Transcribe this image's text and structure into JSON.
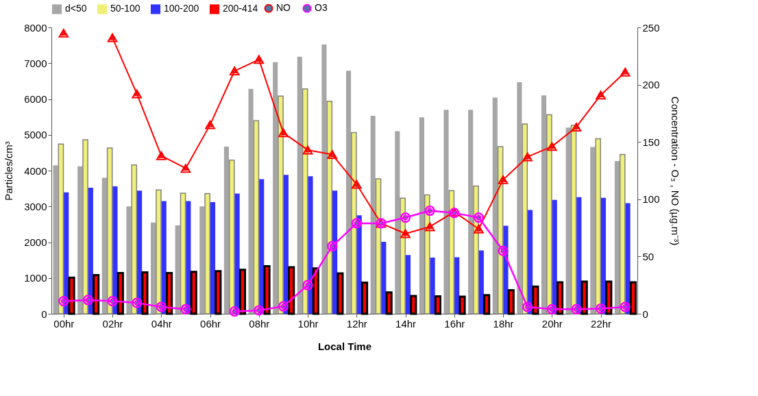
{
  "chart_data": {
    "type": "bar",
    "xlabel": "Local Time",
    "ylabel": "Particles/cm³",
    "y2label": "Concentration - O₃ , NO (µg.m⁻³)",
    "categories": [
      "00hr",
      null,
      "02hr",
      null,
      "04hr",
      null,
      "06hr",
      null,
      "08hr",
      null,
      "10hr",
      null,
      "12hr",
      null,
      "14hr",
      null,
      "16hr",
      null,
      "18hr",
      null,
      "20hr",
      null,
      "22hr",
      null
    ],
    "ylim": [
      0,
      8000
    ],
    "yticks": [
      0,
      1000,
      2000,
      3000,
      4000,
      5000,
      6000,
      7000,
      8000
    ],
    "y2lim": [
      0,
      250
    ],
    "y2ticks": [
      0,
      50,
      100,
      150,
      200,
      250
    ],
    "grid": false,
    "legend": "top",
    "series": [
      {
        "name": "d<50",
        "color": "#a6a6a6",
        "values": [
          4150,
          4120,
          3800,
          3000,
          2550,
          2470,
          3000,
          4670,
          6280,
          7030,
          7180,
          7520,
          6790,
          5530,
          5100,
          5490,
          5700,
          5700,
          6040,
          6470,
          6100,
          5200,
          4660,
          4270
        ]
      },
      {
        "name": "50-100",
        "color": "#f0f078",
        "values": [
          4740,
          4860,
          4630,
          4160,
          3460,
          3370,
          3360,
          4290,
          5390,
          6080,
          6280,
          5940,
          5060,
          3770,
          3230,
          3320,
          3440,
          3570,
          4670,
          5300,
          5560,
          5270,
          4890,
          4450
        ]
      },
      {
        "name": "100-200",
        "color": "#3333ff",
        "values": [
          3390,
          3520,
          3560,
          3440,
          3150,
          3150,
          3120,
          3360,
          3760,
          3880,
          3840,
          3440,
          2750,
          2010,
          1640,
          1570,
          1580,
          1770,
          2460,
          2900,
          3180,
          3260,
          3240,
          3090
        ]
      },
      {
        "name": "200-414",
        "color": "#ff0000",
        "values": [
          1010,
          1080,
          1140,
          1160,
          1140,
          1170,
          1190,
          1230,
          1330,
          1300,
          1270,
          1130,
          870,
          600,
          500,
          490,
          480,
          520,
          660,
          760,
          880,
          900,
          900,
          880
        ]
      },
      {
        "name": "NO",
        "type": "line",
        "axis": "y2",
        "marker": "triangle",
        "color": "#ff0000",
        "values": [
          245,
          null,
          241,
          192,
          138,
          127,
          165,
          212,
          222,
          158,
          143,
          139,
          113,
          79,
          70,
          76,
          89,
          74,
          117,
          137,
          146,
          163,
          191,
          211
        ]
      },
      {
        "name": "O3",
        "type": "line",
        "axis": "y2",
        "marker": "circle",
        "color": "#ff00ff",
        "values": [
          11,
          12,
          11,
          9.5,
          6,
          4,
          null,
          2,
          3,
          6.5,
          25,
          59,
          79,
          79,
          84,
          90,
          88,
          84,
          55,
          6,
          4,
          4,
          4.5,
          6
        ]
      }
    ]
  }
}
